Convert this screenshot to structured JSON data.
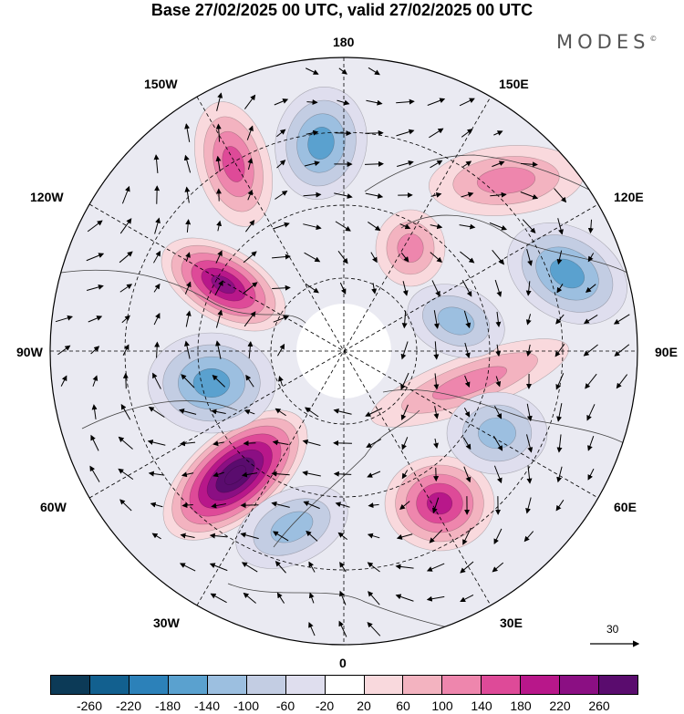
{
  "title": "Base 27/02/2025 00 UTC, valid 27/02/2025 00 UTC",
  "brand": "MODES",
  "brand_mark": "©",
  "longitude_labels": {
    "top": "180",
    "bottom": "0",
    "left": "90W",
    "right": "90E",
    "upper_left_outer": "150W",
    "upper_left_inner": "120W",
    "upper_right_outer": "150E",
    "upper_right_inner": "120E",
    "lower_left_inner": "60W",
    "lower_left_outer": "30W",
    "lower_right_inner": "60E",
    "lower_right_outer": "30E"
  },
  "reference_vector_label": "30",
  "colorbar": {
    "colors": [
      "#0c3a57",
      "#12608f",
      "#2c81b9",
      "#5aa1cf",
      "#9cbfe0",
      "#c3cde3",
      "#dfdeee",
      "#ffffff",
      "#f9d9dd",
      "#f3b3c0",
      "#ee86ad",
      "#de4a98",
      "#b8178a",
      "#8b0f83",
      "#5a0c6e"
    ],
    "labels": [
      "-260",
      "-220",
      "-180",
      "-140",
      "-100",
      "-60",
      "-20",
      "20",
      "60",
      "100",
      "140",
      "180",
      "220",
      "260"
    ]
  },
  "anomaly_centers": [
    {
      "sign": "positive",
      "amplitude": 280
    },
    {
      "sign": "positive",
      "amplitude": 200
    },
    {
      "sign": "positive",
      "amplitude": 160
    },
    {
      "sign": "positive",
      "amplitude": 120
    },
    {
      "sign": "positive",
      "amplitude": 90
    },
    {
      "sign": "positive",
      "amplitude": 90
    },
    {
      "sign": "positive",
      "amplitude": 80
    },
    {
      "sign": "negative",
      "amplitude": 130
    },
    {
      "sign": "negative",
      "amplitude": 120
    },
    {
      "sign": "negative",
      "amplitude": 120
    },
    {
      "sign": "negative",
      "amplitude": 110
    },
    {
      "sign": "negative",
      "amplitude": 90
    },
    {
      "sign": "negative",
      "amplitude": 80
    }
  ]
}
